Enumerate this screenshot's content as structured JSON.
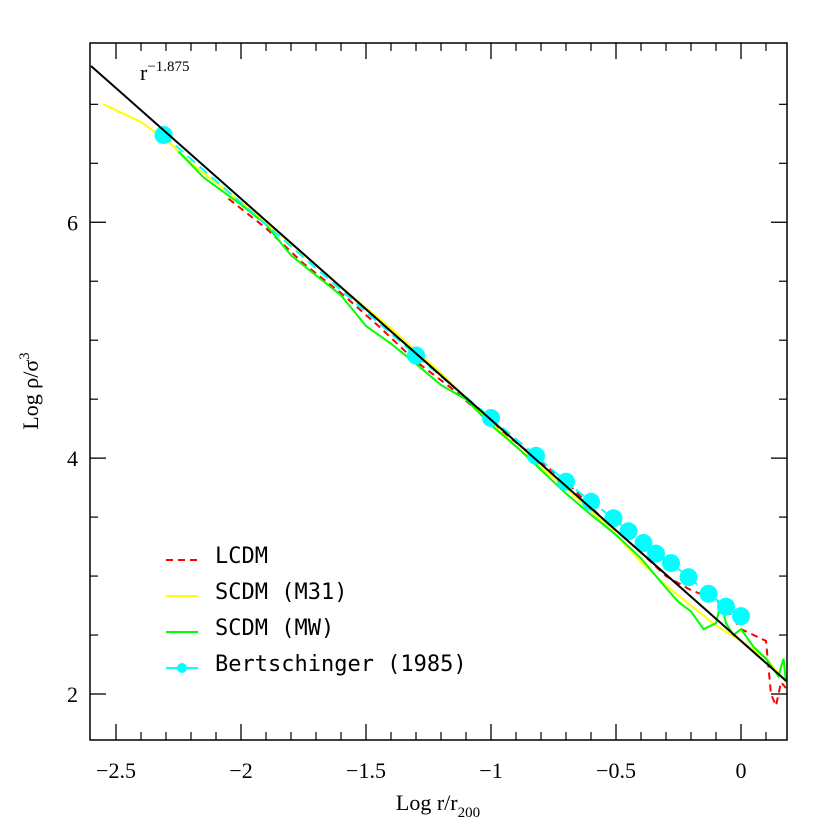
{
  "chart_data": {
    "type": "line",
    "xlabel": "Log r/r",
    "xlabel_sub": "200",
    "ylabel": "Log ρ/σ",
    "ylabel_sup": "3",
    "annotation": "r",
    "annotation_sup": "−1.875",
    "xlim": [
      -2.604,
      0.184
    ],
    "ylim": [
      1.61,
      7.52
    ],
    "xticks": [
      {
        "value": -2.5,
        "label": "−2.5"
      },
      {
        "value": -2,
        "label": "−2"
      },
      {
        "value": -1.5,
        "label": "−1.5"
      },
      {
        "value": -1,
        "label": "−1"
      },
      {
        "value": -0.5,
        "label": "−0.5"
      },
      0
    ],
    "xminor_ticks": [
      -2.4,
      -2.3,
      -2.2,
      -2.1,
      -1.9,
      -1.8,
      -1.7,
      -1.6,
      -1.4,
      -1.3,
      -1.2,
      -1.1,
      -0.9,
      -0.8,
      -0.7,
      -0.6,
      -0.4,
      -0.3,
      -0.2,
      -0.1,
      0.1
    ],
    "yticks": [
      2,
      4,
      6
    ],
    "yminor_ticks": [
      2.5,
      3,
      3.5,
      4.5,
      5,
      5.5,
      6.5,
      7
    ],
    "fit": {
      "color": "#000000",
      "x": [
        -2.6,
        0.18
      ],
      "values": [
        7.325,
        2.1125
      ]
    },
    "series": [
      {
        "name": "LCDM",
        "color": "#ff0000",
        "style": "dashed",
        "x": [
          -2.05,
          -1.9,
          -1.75,
          -1.6,
          -1.45,
          -1.3,
          -1.15,
          -1.0,
          -0.85,
          -0.7,
          -0.55,
          -0.4,
          -0.3,
          -0.2,
          -0.1,
          -0.05,
          0,
          0.05,
          0.1,
          0.12,
          0.14,
          0.16,
          0.18
        ],
        "values": [
          6.2,
          5.95,
          5.65,
          5.4,
          5.12,
          4.82,
          4.58,
          4.3,
          4.05,
          3.8,
          3.48,
          3.2,
          3.0,
          2.88,
          2.8,
          2.7,
          2.55,
          2.5,
          2.45,
          2.0,
          1.9,
          2.1,
          2.05
        ]
      },
      {
        "name": "SCDM (M31)",
        "color": "#ffff00",
        "style": "solid",
        "x": [
          -2.55,
          -2.4,
          -2.3,
          -2.2,
          -2.0,
          -1.8,
          -1.6,
          -1.4,
          -1.2,
          -1.0,
          -0.9,
          -0.8,
          -0.7,
          -0.6,
          -0.5,
          -0.4,
          -0.3,
          -0.2,
          -0.1,
          0,
          0.1,
          0.18
        ],
        "values": [
          7.0,
          6.85,
          6.7,
          6.5,
          6.17,
          5.82,
          5.45,
          5.1,
          4.72,
          4.3,
          4.1,
          3.92,
          3.75,
          3.55,
          3.35,
          3.12,
          2.92,
          2.75,
          2.58,
          2.45,
          2.3,
          2.1
        ]
      },
      {
        "name": "SCDM (MW)",
        "color": "#00ff00",
        "style": "solid",
        "x": [
          -2.25,
          -2.15,
          -2.0,
          -1.9,
          -1.8,
          -1.7,
          -1.6,
          -1.5,
          -1.4,
          -1.3,
          -1.2,
          -1.1,
          -1.0,
          -0.9,
          -0.8,
          -0.7,
          -0.6,
          -0.5,
          -0.4,
          -0.3,
          -0.25,
          -0.2,
          -0.15,
          -0.1,
          -0.08,
          -0.06,
          -0.03,
          0,
          0.05,
          0.1,
          0.15,
          0.17,
          0.18
        ],
        "values": [
          6.6,
          6.38,
          6.15,
          5.98,
          5.72,
          5.55,
          5.38,
          5.12,
          4.97,
          4.8,
          4.62,
          4.5,
          4.28,
          4.1,
          3.9,
          3.7,
          3.52,
          3.35,
          3.15,
          2.9,
          2.78,
          2.7,
          2.55,
          2.6,
          2.78,
          2.6,
          2.5,
          2.55,
          2.4,
          2.3,
          2.15,
          2.3,
          2.1
        ]
      },
      {
        "name": "Bertschinger (1985)",
        "color": "#00ffff",
        "style": "dots",
        "x": [
          -2.31,
          -1.3,
          -1.0,
          -0.82,
          -0.7,
          -0.6,
          -0.51,
          -0.45,
          -0.39,
          -0.34,
          -0.28,
          -0.21,
          -0.13,
          -0.06,
          0
        ],
        "values": [
          6.74,
          4.87,
          4.34,
          4.02,
          3.8,
          3.63,
          3.49,
          3.38,
          3.28,
          3.19,
          3.11,
          2.99,
          2.85,
          2.74,
          2.66
        ]
      }
    ]
  }
}
